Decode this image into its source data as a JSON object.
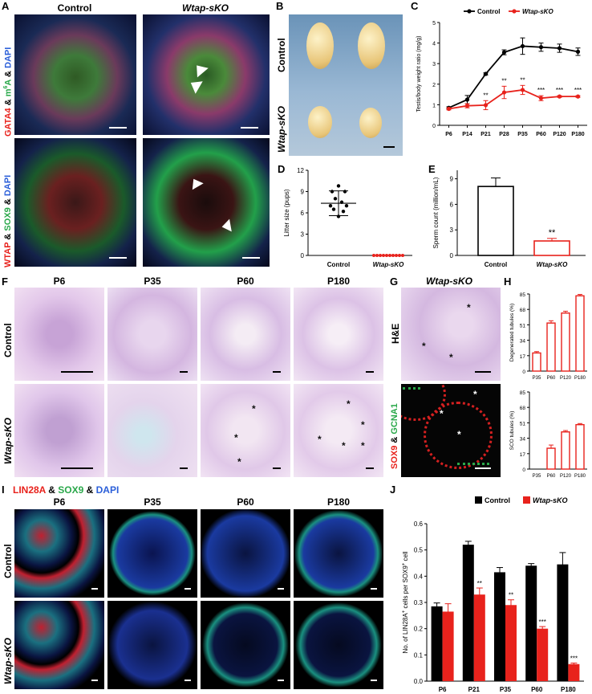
{
  "panels": {
    "A": {
      "label": "A",
      "col_titles": [
        "Control",
        "Wtap-sKO"
      ],
      "row1_stain": [
        "GATA4",
        " & ",
        "m",
        "6",
        "A",
        " & ",
        "DAPI"
      ],
      "row2_stain": [
        "WTAP",
        " & ",
        "SOX9",
        " & ",
        "DAPI"
      ]
    },
    "B": {
      "label": "B",
      "row_titles": [
        "Control",
        "Wtap-sKO"
      ]
    },
    "C": {
      "label": "C"
    },
    "D": {
      "label": "D"
    },
    "E": {
      "label": "E"
    },
    "F": {
      "label": "F",
      "col_titles": [
        "P6",
        "P35",
        "P60",
        "P180"
      ],
      "row_titles": [
        "Control",
        "Wtap-sKO"
      ]
    },
    "G": {
      "label": "G",
      "title": "Wtap-sKO",
      "row_titles": [
        "H&E"
      ],
      "row2_stain": [
        "SOX9",
        " & ",
        "GCNA1"
      ]
    },
    "H": {
      "label": "H"
    },
    "I": {
      "label": "I",
      "stain": [
        "LIN28A",
        " & ",
        "SOX9",
        " & ",
        "DAPI"
      ],
      "col_titles": [
        "P6",
        "P35",
        "P60",
        "P180"
      ],
      "row_titles": [
        "Control",
        "Wtap-sKO"
      ]
    },
    "J": {
      "label": "J"
    }
  },
  "colors": {
    "control": "#000000",
    "ko": "#e8221c",
    "stain_red": "#e8221c",
    "stain_green": "#2aa84a",
    "stain_blue": "#2b5fd9"
  },
  "chart_data": [
    {
      "id": "C",
      "type": "line",
      "title": "",
      "ylabel": "Testis/body weight ratio (mg/g)",
      "xlabel": "",
      "categories": [
        "P6",
        "P14",
        "P21",
        "P28",
        "P35",
        "P60",
        "P120",
        "P180"
      ],
      "ylim": [
        0,
        5
      ],
      "yticks": [
        0,
        1,
        2,
        3,
        4,
        5
      ],
      "legend": "top",
      "series": [
        {
          "name": "Control",
          "values": [
            0.85,
            1.25,
            2.5,
            3.55,
            3.85,
            3.8,
            3.75,
            3.58
          ],
          "errors": [
            0.05,
            0.2,
            0.05,
            0.12,
            0.4,
            0.2,
            0.2,
            0.18
          ]
        },
        {
          "name": "Wtap-sKO",
          "values": [
            0.8,
            0.95,
            0.98,
            1.6,
            1.72,
            1.32,
            1.4,
            1.4
          ],
          "errors": [
            0.05,
            0.1,
            0.22,
            0.3,
            0.22,
            0.12,
            0.04,
            0.04
          ]
        }
      ],
      "annotations": [
        "",
        "",
        "**",
        "**",
        "**",
        "***",
        "***",
        "***"
      ]
    },
    {
      "id": "D",
      "type": "scatter",
      "ylabel": "Litter size (pups)",
      "categories": [
        "Control",
        "Wtap-sKO"
      ],
      "ylim": [
        0,
        12
      ],
      "yticks": [
        0,
        3,
        6,
        9,
        12
      ],
      "points": [
        [
          9.8,
          9,
          9,
          8,
          7.5,
          7,
          7,
          6.5,
          6.2,
          5.5
        ],
        [
          0,
          0,
          0,
          0,
          0,
          0,
          0,
          0,
          0,
          0
        ]
      ],
      "mean": [
        7.35,
        0
      ],
      "sd": [
        1.75,
        0
      ]
    },
    {
      "id": "E",
      "type": "bar",
      "ylabel": "Sperm count (million/mL)",
      "categories": [
        "Control",
        "Wtap-sKO"
      ],
      "values": [
        8.1,
        1.7
      ],
      "errors": [
        1.0,
        0.3
      ],
      "ylim": [
        0,
        10
      ],
      "yticks": [
        0,
        3,
        6,
        9
      ],
      "annotations": [
        "",
        "**"
      ]
    },
    {
      "id": "H1",
      "type": "bar",
      "ylabel": "Degenerated tubules (%)",
      "categories": [
        "P35",
        "P60",
        "P120",
        "P180"
      ],
      "values": [
        20,
        53,
        64,
        83
      ],
      "errors": [
        1.5,
        2.5,
        2,
        1.5
      ],
      "ylim": [
        0,
        85
      ],
      "yticks": [
        0,
        17,
        34,
        51,
        68,
        85
      ]
    },
    {
      "id": "H2",
      "type": "bar",
      "ylabel": "SCO tubules (%)",
      "categories": [
        "P35",
        "P60",
        "P120",
        "P180"
      ],
      "values": [
        0,
        23,
        41,
        49
      ],
      "errors": [
        0,
        3.5,
        1.5,
        1.2
      ],
      "ylim": [
        0,
        85
      ],
      "yticks": [
        0,
        17,
        34,
        51,
        68,
        85
      ]
    },
    {
      "id": "J",
      "type": "bar",
      "ylabel": "No. of LIN28A+ cells per SOX9+ cell",
      "categories": [
        "P6",
        "P21",
        "P35",
        "P60",
        "P180"
      ],
      "ylim": [
        0,
        0.6
      ],
      "yticks": [
        0.0,
        0.1,
        0.2,
        0.3,
        0.4,
        0.5,
        0.6
      ],
      "legend": "top-right",
      "series": [
        {
          "name": "Control",
          "values": [
            0.285,
            0.52,
            0.415,
            0.44,
            0.445
          ],
          "errors": [
            0.013,
            0.013,
            0.018,
            0.008,
            0.045
          ]
        },
        {
          "name": "Wtap-sKO",
          "values": [
            0.265,
            0.33,
            0.29,
            0.2,
            0.065
          ],
          "errors": [
            0.03,
            0.025,
            0.02,
            0.008,
            0.004
          ]
        }
      ],
      "annotations": [
        "",
        "**",
        "**",
        "***",
        "***"
      ]
    }
  ]
}
